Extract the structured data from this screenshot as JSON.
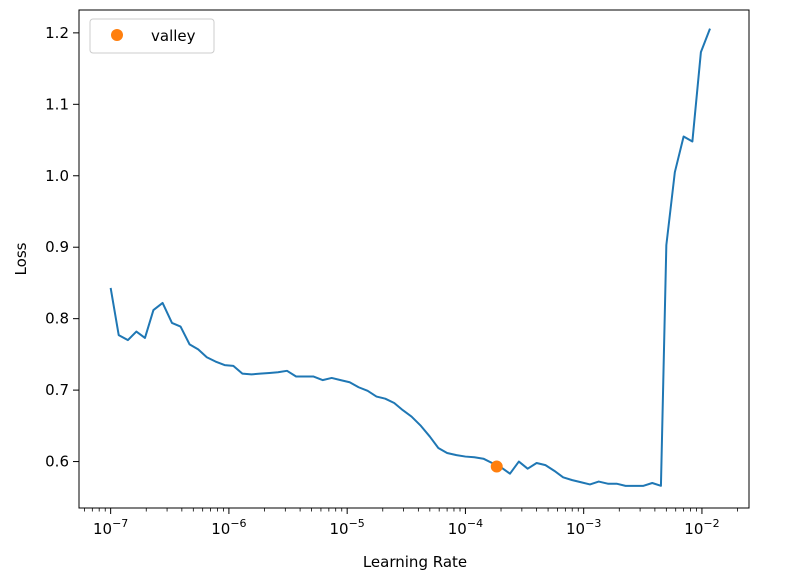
{
  "chart_data": {
    "type": "line",
    "xlabel": "Learning Rate",
    "ylabel": "Loss",
    "xscale": "log",
    "xlim": [
      5.4e-08,
      0.025
    ],
    "ylim": [
      0.535,
      1.232
    ],
    "grid": false,
    "legend_position": "top-left",
    "x_ticks": [
      {
        "value": 1e-07,
        "base": "10",
        "exp": "−7"
      },
      {
        "value": 1e-06,
        "base": "10",
        "exp": "−6"
      },
      {
        "value": 1e-05,
        "base": "10",
        "exp": "−5"
      },
      {
        "value": 0.0001,
        "base": "10",
        "exp": "−4"
      },
      {
        "value": 0.001,
        "base": "10",
        "exp": "−3"
      },
      {
        "value": 0.01,
        "base": "10",
        "exp": "−2"
      }
    ],
    "y_ticks": [
      {
        "value": 0.6,
        "label": "0.6"
      },
      {
        "value": 0.7,
        "label": "0.7"
      },
      {
        "value": 0.8,
        "label": "0.8"
      },
      {
        "value": 0.9,
        "label": "0.9"
      },
      {
        "value": 1.0,
        "label": "1.0"
      },
      {
        "value": 1.1,
        "label": "1.1"
      },
      {
        "value": 1.2,
        "label": "1.2"
      }
    ],
    "series": [
      {
        "kind": "line",
        "color": "#1f77b4",
        "points": [
          [
            1e-07,
            0.843
          ],
          [
            1.17e-07,
            0.777
          ],
          [
            1.4e-07,
            0.77
          ],
          [
            1.65e-07,
            0.782
          ],
          [
            1.95e-07,
            0.773
          ],
          [
            2.3e-07,
            0.812
          ],
          [
            2.75e-07,
            0.822
          ],
          [
            3.3e-07,
            0.794
          ],
          [
            3.9e-07,
            0.789
          ],
          [
            4.65e-07,
            0.764
          ],
          [
            5.5e-07,
            0.757
          ],
          [
            6.5e-07,
            0.746
          ],
          [
            7.7e-07,
            0.74
          ],
          [
            9.2e-07,
            0.735
          ],
          [
            1.09e-06,
            0.734
          ],
          [
            1.3e-06,
            0.723
          ],
          [
            1.55e-06,
            0.722
          ],
          [
            1.84e-06,
            0.723
          ],
          [
            2.2e-06,
            0.724
          ],
          [
            2.6e-06,
            0.725
          ],
          [
            3.1e-06,
            0.727
          ],
          [
            3.7e-06,
            0.719
          ],
          [
            4.4e-06,
            0.719
          ],
          [
            5.2e-06,
            0.719
          ],
          [
            6.2e-06,
            0.714
          ],
          [
            7.4e-06,
            0.717
          ],
          [
            8.8e-06,
            0.714
          ],
          [
            1.05e-05,
            0.711
          ],
          [
            1.25e-05,
            0.704
          ],
          [
            1.49e-05,
            0.699
          ],
          [
            1.77e-05,
            0.691
          ],
          [
            2.1e-05,
            0.688
          ],
          [
            2.5e-05,
            0.682
          ],
          [
            2.95e-05,
            0.672
          ],
          [
            3.5e-05,
            0.663
          ],
          [
            4.2e-05,
            0.65
          ],
          [
            5e-05,
            0.635
          ],
          [
            5.9e-05,
            0.619
          ],
          [
            7e-05,
            0.612
          ],
          [
            8.4e-05,
            0.609
          ],
          [
            0.0001,
            0.607
          ],
          [
            0.000119,
            0.606
          ],
          [
            0.000142,
            0.604
          ],
          [
            0.000168,
            0.598
          ],
          [
            0.0002,
            0.592
          ],
          [
            0.000238,
            0.583
          ],
          [
            0.000283,
            0.6
          ],
          [
            0.000336,
            0.59
          ],
          [
            0.0004,
            0.598
          ],
          [
            0.000475,
            0.595
          ],
          [
            0.000565,
            0.587
          ],
          [
            0.00067,
            0.578
          ],
          [
            0.0008,
            0.574
          ],
          [
            0.00095,
            0.571
          ],
          [
            0.00113,
            0.568
          ],
          [
            0.00134,
            0.572
          ],
          [
            0.0016,
            0.569
          ],
          [
            0.0019,
            0.569
          ],
          [
            0.00226,
            0.566
          ],
          [
            0.0027,
            0.566
          ],
          [
            0.0032,
            0.566
          ],
          [
            0.0038,
            0.57
          ],
          [
            0.0045,
            0.566
          ],
          [
            0.005,
            0.903
          ],
          [
            0.0059,
            1.005
          ],
          [
            0.007,
            1.055
          ],
          [
            0.0083,
            1.048
          ],
          [
            0.0098,
            1.173
          ],
          [
            0.0117,
            1.206
          ]
        ]
      },
      {
        "name": "valley",
        "kind": "marker",
        "color": "#ff7f0e",
        "points": [
          [
            0.000184,
            0.593
          ]
        ]
      }
    ]
  }
}
